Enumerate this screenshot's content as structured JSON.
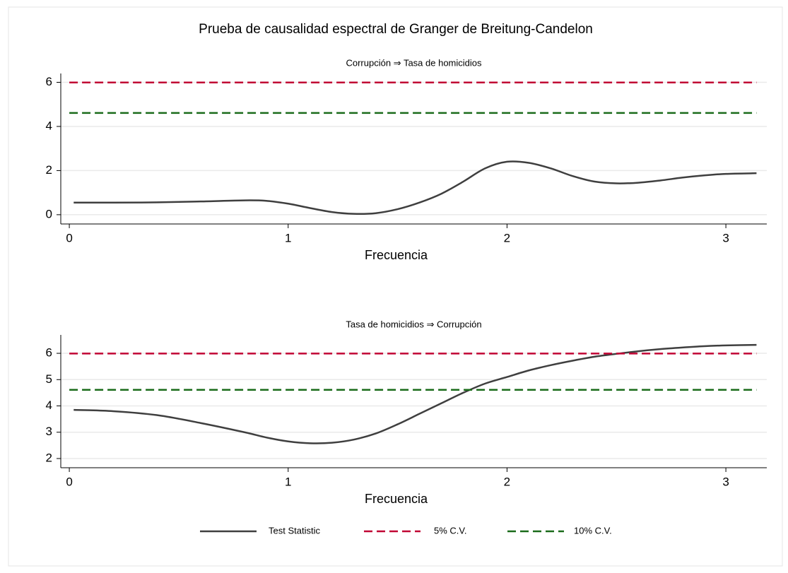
{
  "title": "Prueba de causalidad espectral de Granger de Breitung-Candelon",
  "chart_data": [
    {
      "type": "line",
      "title": "Corrupción ⇒ Tasa de homicidios",
      "xlabel": "Frecuencia",
      "x": [
        0.02,
        0.2,
        0.4,
        0.6,
        0.8,
        0.9,
        1.0,
        1.1,
        1.2,
        1.3,
        1.4,
        1.5,
        1.6,
        1.7,
        1.8,
        1.9,
        2.0,
        2.1,
        2.2,
        2.3,
        2.4,
        2.5,
        2.6,
        2.7,
        2.8,
        2.9,
        3.0,
        3.14
      ],
      "series": [
        {
          "name": "Test Statistic",
          "color": "#3f3f3f",
          "dash": false,
          "values": [
            0.55,
            0.55,
            0.56,
            0.6,
            0.65,
            0.63,
            0.5,
            0.3,
            0.12,
            0.04,
            0.07,
            0.25,
            0.55,
            0.95,
            1.5,
            2.1,
            2.4,
            2.35,
            2.1,
            1.75,
            1.5,
            1.42,
            1.45,
            1.55,
            1.68,
            1.78,
            1.85,
            1.88
          ]
        },
        {
          "name": "5% C.V.",
          "color": "#c10534",
          "dash": true,
          "x": [
            0,
            3.14
          ],
          "values": [
            5.99,
            5.99
          ]
        },
        {
          "name": "10% C.V.",
          "color": "#1a6b1a",
          "dash": true,
          "x": [
            0,
            3.14
          ],
          "values": [
            4.61,
            4.61
          ]
        }
      ],
      "xlim": [
        -0.039,
        3.187
      ],
      "xticks": [
        0,
        1,
        2,
        3
      ],
      "ylim": [
        -0.42,
        6.4
      ],
      "yticks": [
        0,
        2,
        4,
        6
      ],
      "grid": true
    },
    {
      "type": "line",
      "title": "Tasa de homicidios ⇒ Corrupción",
      "xlabel": "Frecuencia",
      "x": [
        0.02,
        0.2,
        0.4,
        0.6,
        0.8,
        0.9,
        1.0,
        1.1,
        1.2,
        1.3,
        1.4,
        1.5,
        1.6,
        1.7,
        1.8,
        1.9,
        2.0,
        2.1,
        2.2,
        2.3,
        2.4,
        2.5,
        2.6,
        2.7,
        2.8,
        2.9,
        3.0,
        3.14
      ],
      "series": [
        {
          "name": "Test Statistic",
          "color": "#3f3f3f",
          "dash": false,
          "values": [
            3.85,
            3.8,
            3.65,
            3.35,
            3.0,
            2.8,
            2.65,
            2.58,
            2.6,
            2.72,
            2.95,
            3.3,
            3.7,
            4.1,
            4.5,
            4.85,
            5.1,
            5.35,
            5.55,
            5.72,
            5.87,
            5.98,
            6.08,
            6.16,
            6.22,
            6.27,
            6.3,
            6.32
          ]
        },
        {
          "name": "5% C.V.",
          "color": "#c10534",
          "dash": true,
          "x": [
            0,
            3.14
          ],
          "values": [
            5.99,
            5.99
          ]
        },
        {
          "name": "10% C.V.",
          "color": "#1a6b1a",
          "dash": true,
          "x": [
            0,
            3.14
          ],
          "values": [
            4.61,
            4.61
          ]
        }
      ],
      "xlim": [
        -0.039,
        3.187
      ],
      "xticks": [
        0,
        1,
        2,
        3
      ],
      "ylim": [
        1.65,
        6.7
      ],
      "yticks": [
        2,
        3,
        4,
        5,
        6
      ],
      "grid": true
    }
  ]
}
